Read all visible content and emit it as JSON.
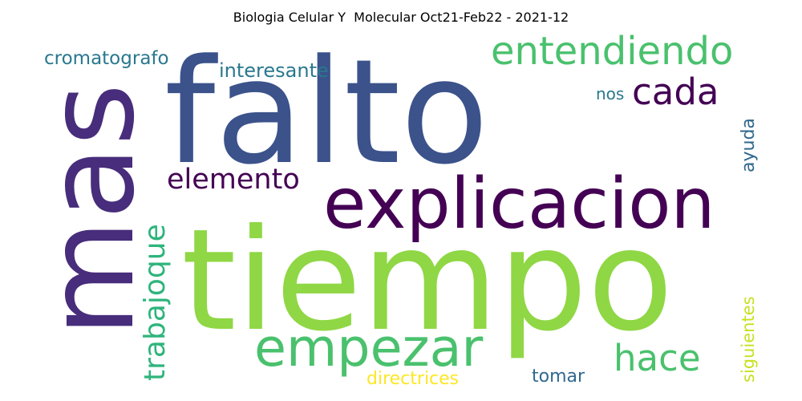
{
  "title": "Biologia Celular Y  Molecular Oct21-Feb22 - 2021-12",
  "words": [
    {
      "text": "falto",
      "color": "#3b528b"
    },
    {
      "text": "mas",
      "color": "#472d7b"
    },
    {
      "text": "tiempo",
      "color": "#8fd744"
    },
    {
      "text": "explicacion",
      "color": "#440154"
    },
    {
      "text": "empezar",
      "color": "#4ac16d"
    },
    {
      "text": "entendiendo",
      "color": "#4ac16d"
    },
    {
      "text": "cada",
      "color": "#440154"
    },
    {
      "text": "elemento",
      "color": "#440154"
    },
    {
      "text": "trabajoque",
      "color": "#2fb47c"
    },
    {
      "text": "hace",
      "color": "#4ac16d"
    },
    {
      "text": "cromatografo",
      "color": "#2a788e"
    },
    {
      "text": "interesante",
      "color": "#2a788e"
    },
    {
      "text": "nos",
      "color": "#2a788e"
    },
    {
      "text": "ayuda",
      "color": "#31688e"
    },
    {
      "text": "siguientes",
      "color": "#c8e020"
    },
    {
      "text": "directrices",
      "color": "#fde725"
    },
    {
      "text": "tomar",
      "color": "#31688e"
    }
  ]
}
